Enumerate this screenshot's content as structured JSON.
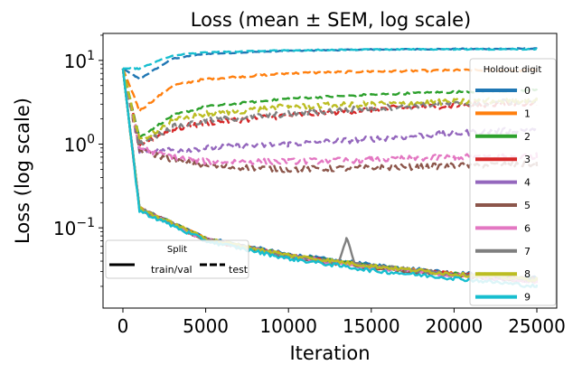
{
  "chart_data": {
    "type": "line",
    "title": "Loss (mean ± SEM, log scale)",
    "xlabel": "Iteration",
    "ylabel": "Loss (log scale)",
    "xlim": [
      -1200,
      26200
    ],
    "ylim": [
      0.011,
      21
    ],
    "yscale": "log",
    "x_ticks": [
      0,
      5000,
      10000,
      15000,
      20000,
      25000
    ],
    "x_tick_labels": [
      "0",
      "5000",
      "10000",
      "15000",
      "20000",
      "25000"
    ],
    "y_ticks": [
      0.1,
      1,
      10
    ],
    "y_tick_labels": [
      {
        "base": "10",
        "exp": "−1"
      },
      {
        "base": "10",
        "exp": "0"
      },
      {
        "base": "10",
        "exp": "1"
      }
    ],
    "grid": false,
    "style_legend": {
      "title": "Split",
      "placement": "lower-left",
      "entries": [
        {
          "label": "train/val",
          "dash": "solid"
        },
        {
          "label": "test",
          "dash": "dashed"
        }
      ]
    },
    "series_legend": {
      "title": "Holdout digit",
      "placement": "right"
    },
    "series": [
      {
        "name": "0",
        "color": "#1f77b4",
        "train": {
          "x": [
            0,
            1000,
            5000,
            10000,
            15000,
            20000,
            25000
          ],
          "y": [
            8.0,
            0.17,
            0.075,
            0.048,
            0.036,
            0.029,
            0.025
          ]
        },
        "test": {
          "x": [
            0,
            1000,
            3000,
            5000,
            10000,
            15000,
            20000,
            25000
          ],
          "y": [
            8.0,
            6.0,
            10.5,
            12.0,
            13.0,
            13.5,
            13.7,
            13.8
          ]
        }
      },
      {
        "name": "1",
        "color": "#ff7f0e",
        "train": {
          "x": [
            0,
            1000,
            5000,
            10000,
            15000,
            20000,
            25000
          ],
          "y": [
            8.0,
            0.17,
            0.074,
            0.047,
            0.035,
            0.028,
            0.024
          ]
        },
        "test": {
          "x": [
            0,
            1000,
            3000,
            5000,
            10000,
            15000,
            20000,
            25000
          ],
          "y": [
            8.0,
            2.5,
            5.0,
            6.0,
            7.0,
            7.4,
            7.6,
            7.6
          ]
        }
      },
      {
        "name": "2",
        "color": "#2ca02c",
        "train": {
          "x": [
            0,
            1000,
            5000,
            10000,
            15000,
            20000,
            25000
          ],
          "y": [
            8.0,
            0.17,
            0.073,
            0.047,
            0.035,
            0.028,
            0.024
          ]
        },
        "test": {
          "x": [
            0,
            1000,
            3000,
            5000,
            10000,
            15000,
            20000,
            25000
          ],
          "y": [
            8.0,
            1.2,
            2.2,
            2.8,
            3.5,
            3.9,
            4.2,
            4.4
          ]
        }
      },
      {
        "name": "3",
        "color": "#d62728",
        "train": {
          "x": [
            0,
            1000,
            5000,
            10000,
            15000,
            20000,
            25000
          ],
          "y": [
            8.0,
            0.17,
            0.072,
            0.046,
            0.034,
            0.028,
            0.024
          ]
        },
        "test": {
          "x": [
            0,
            1000,
            3000,
            5000,
            10000,
            15000,
            20000,
            25000
          ],
          "y": [
            8.0,
            1.0,
            1.5,
            1.8,
            2.2,
            2.6,
            2.9,
            3.1
          ]
        }
      },
      {
        "name": "4",
        "color": "#9467bd",
        "train": {
          "x": [
            0,
            1000,
            5000,
            10000,
            15000,
            20000,
            25000
          ],
          "y": [
            8.0,
            0.17,
            0.073,
            0.046,
            0.034,
            0.027,
            0.023
          ]
        },
        "test": {
          "x": [
            0,
            1000,
            3000,
            5000,
            10000,
            15000,
            20000,
            25000
          ],
          "y": [
            8.0,
            0.85,
            0.85,
            0.9,
            1.0,
            1.15,
            1.35,
            1.5
          ]
        }
      },
      {
        "name": "5",
        "color": "#8c564b",
        "train": {
          "x": [
            0,
            1000,
            5000,
            10000,
            15000,
            20000,
            25000
          ],
          "y": [
            8.0,
            0.17,
            0.072,
            0.045,
            0.033,
            0.027,
            0.023
          ]
        },
        "test": {
          "x": [
            0,
            1000,
            3000,
            5000,
            10000,
            15000,
            20000,
            25000
          ],
          "y": [
            8.0,
            0.85,
            0.65,
            0.55,
            0.5,
            0.52,
            0.55,
            0.58
          ]
        }
      },
      {
        "name": "6",
        "color": "#e377c2",
        "train": {
          "x": [
            0,
            1000,
            5000,
            10000,
            15000,
            20000,
            25000
          ],
          "y": [
            8.0,
            0.17,
            0.072,
            0.045,
            0.034,
            0.027,
            0.023
          ]
        },
        "test": {
          "x": [
            0,
            1000,
            3000,
            5000,
            10000,
            15000,
            20000,
            25000
          ],
          "y": [
            8.0,
            0.9,
            0.7,
            0.62,
            0.62,
            0.65,
            0.7,
            0.72
          ]
        }
      },
      {
        "name": "7",
        "color": "#7f7f7f",
        "train": {
          "x": [
            0,
            1000,
            5000,
            10000,
            13000,
            13500,
            14000,
            15000,
            20000,
            25000
          ],
          "y": [
            8.0,
            0.17,
            0.073,
            0.046,
            0.038,
            0.075,
            0.037,
            0.035,
            0.028,
            0.024
          ]
        },
        "test": {
          "x": [
            0,
            1000,
            3000,
            5000,
            10000,
            15000,
            20000,
            25000
          ],
          "y": [
            8.0,
            1.0,
            1.6,
            1.9,
            2.3,
            2.7,
            3.0,
            3.3
          ]
        }
      },
      {
        "name": "8",
        "color": "#bcbd22",
        "train": {
          "x": [
            0,
            1000,
            5000,
            10000,
            15000,
            20000,
            25000
          ],
          "y": [
            8.0,
            0.17,
            0.074,
            0.047,
            0.035,
            0.028,
            0.024
          ]
        },
        "test": {
          "x": [
            0,
            1000,
            3000,
            5000,
            10000,
            15000,
            20000,
            25000
          ],
          "y": [
            8.0,
            1.1,
            1.9,
            2.3,
            2.8,
            3.0,
            3.2,
            3.4
          ]
        }
      },
      {
        "name": "9",
        "color": "#17becf",
        "train": {
          "x": [
            0,
            1000,
            5000,
            10000,
            15000,
            20000,
            25000
          ],
          "y": [
            8.0,
            0.16,
            0.07,
            0.043,
            0.031,
            0.025,
            0.02
          ]
        },
        "test": {
          "x": [
            0,
            1000,
            3000,
            5000,
            10000,
            15000,
            20000,
            25000
          ],
          "y": [
            8.0,
            8.0,
            11.5,
            12.5,
            13.2,
            13.5,
            13.6,
            13.6
          ]
        }
      }
    ]
  }
}
